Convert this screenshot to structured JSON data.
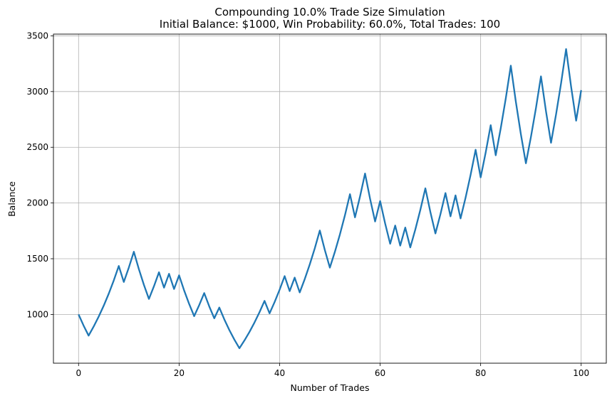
{
  "chart_data": {
    "type": "line",
    "title": "Compounding 10.0% Trade Size Simulation",
    "subtitle": "Initial Balance: $1000, Win Probability: 60.0%, Total Trades: 100",
    "xlabel": "Number of Trades",
    "ylabel": "Balance",
    "xlim": [
      -5,
      105
    ],
    "ylim": [
      562.5,
      3515.5
    ],
    "xticks": [
      0,
      20,
      40,
      60,
      80,
      100
    ],
    "yticks": [
      1000,
      1500,
      2000,
      2500,
      3000,
      3500
    ],
    "grid": true,
    "series": [
      {
        "color": "#1f77b4",
        "values": [
          1000,
          900,
          810,
          891,
          980.1,
          1078.11,
          1185.92,
          1304.51,
          1434.97,
          1291.47,
          1420.61,
          1562.68,
          1406.41,
          1265.77,
          1139.19,
          1253.11,
          1378.42,
          1240.58,
          1364.64,
          1228.17,
          1350.99,
          1215.89,
          1094.3,
          984.87,
          1083.36,
          1191.69,
          1072.52,
          965.27,
          1061.8,
          955.62,
          860.06,
          774.05,
          696.65,
          766.31,
          842.94,
          927.24,
          1019.96,
          1121.96,
          1009.76,
          1110.74,
          1221.81,
          1343.99,
          1209.59,
          1330.55,
          1197.5,
          1317.25,
          1448.97,
          1593.87,
          1753.26,
          1577.93,
          1420.14,
          1562.15,
          1718.37,
          1890.2,
          2079.22,
          1871.3,
          2058.43,
          2264.27,
          2037.85,
          1834.06,
          2017.47,
          1815.72,
          1634.15,
          1797.56,
          1617.81,
          1779.59,
          1601.63,
          1761.79,
          1937.97,
          2131.77,
          1918.59,
          1726.73,
          1899.41,
          2089.35,
          1880.41,
          2068.45,
          1861.61,
          2047.77,
          2252.55,
          2477.8,
          2230.02,
          2453.02,
          2698.33,
          2428.49,
          2671.34,
          2938.48,
          3232.32,
          2909.09,
          2618.18,
          2356.36,
          2592,
          2851.2,
          3136.32,
          2822.69,
          2540.42,
          2794.46,
          3073.91,
          3381.3,
          3043.17,
          2738.85,
          3012.74
        ]
      }
    ]
  }
}
